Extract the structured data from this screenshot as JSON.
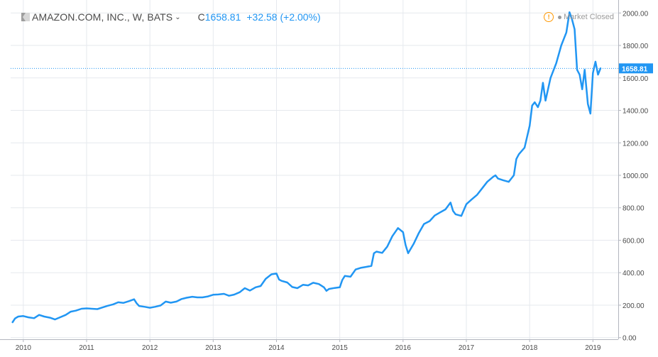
{
  "header": {
    "symbol": "AMAZON.COM, INC., W, BATS",
    "close_label": "C",
    "close_value": "1658.81",
    "change": "+32.58 (+2.00%)",
    "market_status": "Market Closed"
  },
  "colors": {
    "line": "#2196f3",
    "grid": "#e6e9ee",
    "axis_text": "#4a4a4a",
    "warning": "#ff9800",
    "price_tag": "#2196f3"
  },
  "icons": {
    "symbol": "bar-flag-icon",
    "warning": "warning-circle-icon",
    "dropdown": "chevron-down-icon"
  },
  "chart_data": {
    "type": "line",
    "title": "AMAZON.COM, INC., W, BATS",
    "xlabel": "",
    "ylabel": "",
    "ylim": [
      -10,
      2080
    ],
    "xlim": [
      2009.8,
      2019.4
    ],
    "y_ticks": [
      0,
      200,
      400,
      600,
      800,
      1000,
      1200,
      1400,
      1600,
      1800,
      2000
    ],
    "y_tick_labels": [
      "0.00",
      "200.00",
      "400.00",
      "600.00",
      "800.00",
      "1000.00",
      "1200.00",
      "1400.00",
      "1600.00",
      "1800.00",
      "2000.00"
    ],
    "x_ticks": [
      2010,
      2011,
      2012,
      2013,
      2014,
      2015,
      2016,
      2017,
      2018,
      2019
    ],
    "x_tick_labels": [
      "2010",
      "2011",
      "2012",
      "2013",
      "2014",
      "2015",
      "2016",
      "2017",
      "2018",
      "2019"
    ],
    "last_price": 1658.81,
    "last_price_label": "1658.81",
    "grid": true,
    "series": [
      {
        "points": [
          [
            2009.83,
            95
          ],
          [
            2009.87,
            118
          ],
          [
            2009.92,
            130
          ],
          [
            2010.0,
            133
          ],
          [
            2010.08,
            125
          ],
          [
            2010.17,
            120
          ],
          [
            2010.25,
            140
          ],
          [
            2010.33,
            130
          ],
          [
            2010.42,
            123
          ],
          [
            2010.5,
            112
          ],
          [
            2010.58,
            125
          ],
          [
            2010.67,
            140
          ],
          [
            2010.75,
            160
          ],
          [
            2010.83,
            166
          ],
          [
            2010.92,
            178
          ],
          [
            2011.0,
            180
          ],
          [
            2011.08,
            178
          ],
          [
            2011.17,
            176
          ],
          [
            2011.25,
            186
          ],
          [
            2011.33,
            196
          ],
          [
            2011.42,
            205
          ],
          [
            2011.5,
            218
          ],
          [
            2011.58,
            214
          ],
          [
            2011.67,
            225
          ],
          [
            2011.75,
            236
          ],
          [
            2011.79,
            212
          ],
          [
            2011.83,
            195
          ],
          [
            2011.92,
            190
          ],
          [
            2012.0,
            184
          ],
          [
            2012.08,
            190
          ],
          [
            2012.17,
            198
          ],
          [
            2012.25,
            222
          ],
          [
            2012.33,
            215
          ],
          [
            2012.42,
            222
          ],
          [
            2012.5,
            238
          ],
          [
            2012.58,
            246
          ],
          [
            2012.67,
            252
          ],
          [
            2012.75,
            248
          ],
          [
            2012.83,
            248
          ],
          [
            2012.92,
            254
          ],
          [
            2013.0,
            264
          ],
          [
            2013.08,
            266
          ],
          [
            2013.17,
            270
          ],
          [
            2013.25,
            258
          ],
          [
            2013.33,
            265
          ],
          [
            2013.42,
            280
          ],
          [
            2013.5,
            305
          ],
          [
            2013.58,
            290
          ],
          [
            2013.67,
            310
          ],
          [
            2013.75,
            318
          ],
          [
            2013.83,
            362
          ],
          [
            2013.92,
            390
          ],
          [
            2014.0,
            395
          ],
          [
            2014.04,
            358
          ],
          [
            2014.08,
            350
          ],
          [
            2014.17,
            340
          ],
          [
            2014.25,
            312
          ],
          [
            2014.33,
            305
          ],
          [
            2014.42,
            326
          ],
          [
            2014.5,
            322
          ],
          [
            2014.58,
            338
          ],
          [
            2014.67,
            330
          ],
          [
            2014.75,
            310
          ],
          [
            2014.79,
            288
          ],
          [
            2014.83,
            300
          ],
          [
            2014.92,
            306
          ],
          [
            2015.0,
            310
          ],
          [
            2015.04,
            355
          ],
          [
            2015.08,
            380
          ],
          [
            2015.17,
            375
          ],
          [
            2015.25,
            420
          ],
          [
            2015.33,
            430
          ],
          [
            2015.42,
            436
          ],
          [
            2015.5,
            442
          ],
          [
            2015.54,
            520
          ],
          [
            2015.58,
            530
          ],
          [
            2015.67,
            522
          ],
          [
            2015.75,
            560
          ],
          [
            2015.83,
            625
          ],
          [
            2015.92,
            675
          ],
          [
            2016.0,
            650
          ],
          [
            2016.04,
            570
          ],
          [
            2016.08,
            520
          ],
          [
            2016.17,
            580
          ],
          [
            2016.25,
            645
          ],
          [
            2016.33,
            700
          ],
          [
            2016.42,
            718
          ],
          [
            2016.5,
            752
          ],
          [
            2016.58,
            770
          ],
          [
            2016.67,
            790
          ],
          [
            2016.75,
            832
          ],
          [
            2016.79,
            780
          ],
          [
            2016.83,
            760
          ],
          [
            2016.92,
            750
          ],
          [
            2017.0,
            822
          ],
          [
            2017.08,
            850
          ],
          [
            2017.17,
            880
          ],
          [
            2017.25,
            920
          ],
          [
            2017.33,
            960
          ],
          [
            2017.42,
            990
          ],
          [
            2017.46,
            1000
          ],
          [
            2017.5,
            980
          ],
          [
            2017.58,
            970
          ],
          [
            2017.67,
            960
          ],
          [
            2017.75,
            1000
          ],
          [
            2017.79,
            1100
          ],
          [
            2017.83,
            1130
          ],
          [
            2017.92,
            1170
          ],
          [
            2018.0,
            1305
          ],
          [
            2018.04,
            1430
          ],
          [
            2018.08,
            1450
          ],
          [
            2018.13,
            1420
          ],
          [
            2018.17,
            1460
          ],
          [
            2018.21,
            1570
          ],
          [
            2018.25,
            1460
          ],
          [
            2018.33,
            1600
          ],
          [
            2018.42,
            1690
          ],
          [
            2018.5,
            1800
          ],
          [
            2018.58,
            1880
          ],
          [
            2018.63,
            2005
          ],
          [
            2018.67,
            1960
          ],
          [
            2018.71,
            1900
          ],
          [
            2018.75,
            1650
          ],
          [
            2018.79,
            1620
          ],
          [
            2018.83,
            1530
          ],
          [
            2018.87,
            1650
          ],
          [
            2018.92,
            1440
          ],
          [
            2018.96,
            1380
          ],
          [
            2019.0,
            1630
          ],
          [
            2019.04,
            1700
          ],
          [
            2019.08,
            1620
          ],
          [
            2019.12,
            1658.81
          ]
        ]
      }
    ]
  }
}
